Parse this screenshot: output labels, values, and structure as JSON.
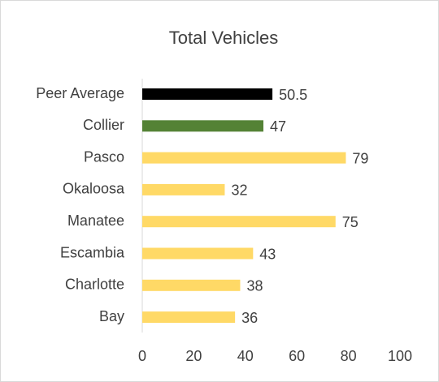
{
  "chart_data": {
    "type": "bar",
    "orientation": "horizontal",
    "title": "Total Vehicles",
    "categories": [
      "Peer Average",
      "Collier",
      "Pasco",
      "Okaloosa",
      "Manatee",
      "Escambia",
      "Charlotte",
      "Bay"
    ],
    "values": [
      50.5,
      47,
      79,
      32,
      75,
      43,
      38,
      36
    ],
    "colors": [
      "#000000",
      "#548235",
      "#ffd966",
      "#ffd966",
      "#ffd966",
      "#ffd966",
      "#ffd966",
      "#ffd966"
    ],
    "xlim": [
      0,
      100
    ],
    "xticks": [
      0,
      20,
      40,
      60,
      80,
      100
    ],
    "grid": false
  }
}
